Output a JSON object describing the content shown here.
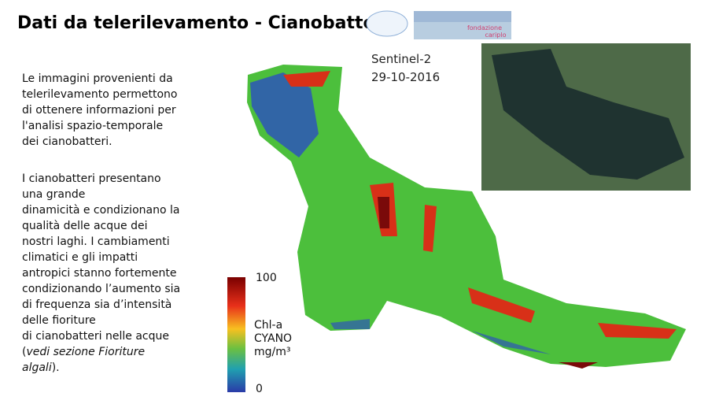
{
  "header": {
    "title": "Dati da telerilevamento - Cianobatteri",
    "logo_text": [
      "fondazione",
      "cariplo"
    ]
  },
  "body": {
    "paragraph_1": [
      "Le immagini provenienti da",
      "telerilevamento permettono",
      "di ottenere informazioni per",
      "l'analisi spazio-temporale",
      "dei cianobatteri."
    ],
    "paragraph_2": [
      "I cianobatteri presentano",
      "una grande",
      "dinamicità e condizionano la",
      "qualità delle acque dei",
      "nostri laghi. I cambiamenti",
      "climatici e gli impatti",
      "antropici stanno fortemente",
      "condizionando l’aumento sia",
      "di frequenza sia d’intensità",
      "delle fioriture",
      "di cianobatteri nelle acque"
    ],
    "note": {
      "open": "(",
      "italic_1": "vedi sezione Fioriture",
      "italic_2": "algali",
      "close": ")."
    }
  },
  "map": {
    "sensor": "Sentinel-2",
    "date": "29-10-2016",
    "colorbar": {
      "max": "100",
      "min": "0",
      "label_lines": [
        "Chl-a",
        "CYANO",
        "mg/m³"
      ]
    }
  }
}
